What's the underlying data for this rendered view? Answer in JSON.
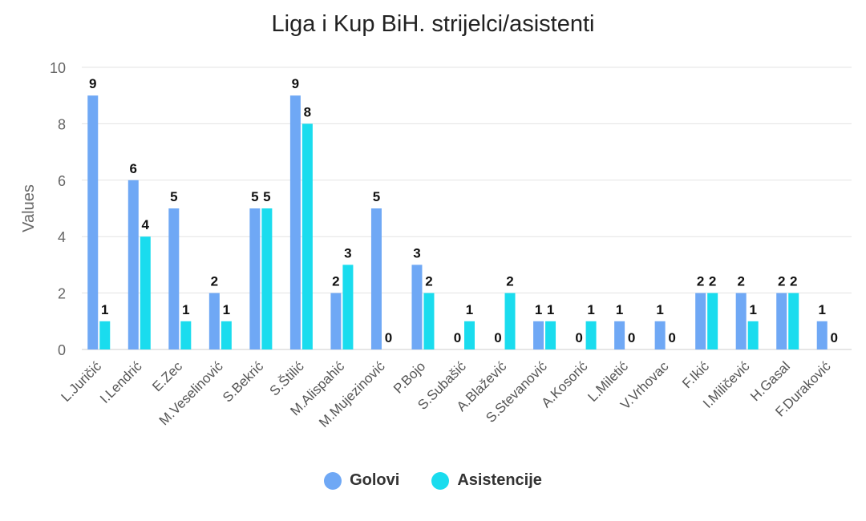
{
  "chart_data": {
    "type": "bar",
    "title": "Liga i Kup BiH. strijelci/asistenti",
    "ylabel": "Values",
    "xlabel": "",
    "ylim": [
      0,
      10
    ],
    "yticks": [
      0,
      2,
      4,
      6,
      8,
      10
    ],
    "grid": true,
    "legend_position": "bottom",
    "categories": [
      "L.Juričić",
      "I.Lendrić",
      "E.Zec",
      "M.Veselinović",
      "S.Bekrić",
      "S.Štilić",
      "M.Alispahić",
      "M.Mujezinović",
      "P.Bojo",
      "S.Subašić",
      "A.Blažević",
      "S.Stevanović",
      "A.Kosorić",
      "L.Miletić",
      "V.Vrhovac",
      "F.Ikić",
      "I.Miličević",
      "H.Gasal",
      "F.Duraković"
    ],
    "series": [
      {
        "name": "Golovi",
        "color": "#6fa8f5",
        "values": [
          9,
          6,
          5,
          2,
          5,
          9,
          2,
          5,
          3,
          0,
          0,
          1,
          0,
          1,
          1,
          2,
          2,
          2,
          1
        ]
      },
      {
        "name": "Asistencije",
        "color": "#1adcee",
        "values": [
          1,
          4,
          1,
          1,
          5,
          8,
          3,
          0,
          2,
          1,
          2,
          1,
          1,
          0,
          0,
          2,
          1,
          2,
          0
        ]
      }
    ]
  }
}
